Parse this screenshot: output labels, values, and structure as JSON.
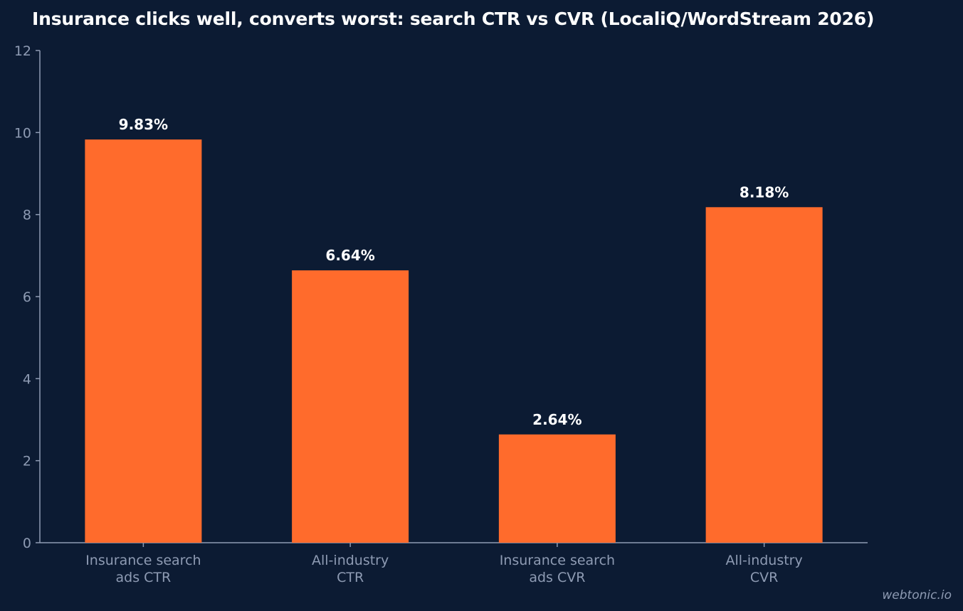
{
  "chart_data": {
    "type": "bar",
    "title": "Insurance clicks well, converts worst: search CTR vs CVR (LocaliQ/WordStream 2026)",
    "categories": [
      [
        "Insurance search",
        "ads CTR"
      ],
      [
        "All-industry",
        "CTR"
      ],
      [
        "Insurance search",
        "ads CVR"
      ],
      [
        "All-industry",
        "CVR"
      ]
    ],
    "values": [
      9.83,
      6.64,
      2.64,
      8.18
    ],
    "data_labels": [
      "9.83%",
      "6.64%",
      "2.64%",
      "8.18%"
    ],
    "ylim": [
      0,
      12
    ],
    "yticks": [
      0,
      2,
      4,
      6,
      8,
      10,
      12
    ],
    "xlabel": "",
    "ylabel": "",
    "grid": false,
    "bar_color": "#ff6b2c",
    "axis_color": "#8e9bb3",
    "background": "#0c1b33"
  },
  "watermark": "webtonic.io"
}
